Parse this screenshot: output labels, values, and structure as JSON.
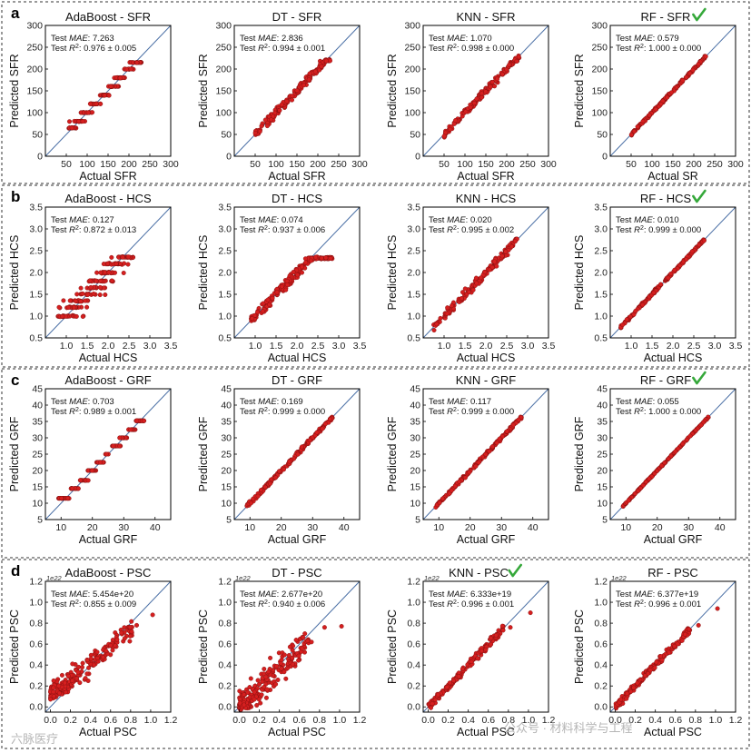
{
  "rows": [
    {
      "letter": "a",
      "ylabel": "Predicted SFR",
      "xlabel": "Actual SFR",
      "ticks": [
        0,
        50,
        100,
        150,
        200,
        250,
        300
      ],
      "xticks": [
        50,
        100,
        150,
        200,
        250,
        300
      ],
      "sci": "",
      "panels": [
        {
          "title": "AdaBoost - SFR",
          "check": false,
          "xlabel": "Actual SFR",
          "mae": "7.263",
          "r2": ": 0.976 ± 0.005",
          "chart_data": {
            "type": "scatter",
            "x_range": [
              0,
              300
            ],
            "y_range": [
              0,
              300
            ],
            "gen": {
              "kind": "step",
              "xmin": 55,
              "xmax": 230,
              "levels": [
                65,
                80,
                100,
                120,
                140,
                160,
                180,
                200,
                215
              ],
              "noise": 6,
              "n": 170
            }
          }
        },
        {
          "title": "DT - SFR",
          "check": false,
          "xlabel": "Actual SFR",
          "mae": "2.836",
          "r2": ": 0.994 ± 0.001",
          "chart_data": {
            "type": "scatter",
            "x_range": [
              0,
              300
            ],
            "y_range": [
              0,
              300
            ],
            "gen": {
              "kind": "flat",
              "xmin": 50,
              "xmax": 230,
              "noise": 5,
              "cap": 220,
              "n": 170
            }
          }
        },
        {
          "title": "KNN - SFR",
          "check": false,
          "xlabel": "Actual SFR",
          "mae": "1.070",
          "r2": ": 0.998 ± 0.000",
          "chart_data": {
            "type": "scatter",
            "x_range": [
              0,
              300
            ],
            "y_range": [
              0,
              300
            ],
            "gen": {
              "kind": "line",
              "xmin": 50,
              "xmax": 230,
              "noise": 4,
              "n": 160
            }
          }
        },
        {
          "title": "RF - SFR",
          "check": true,
          "xlabel": "Actual SR",
          "mae": "0.579",
          "r2": ": 1.000 ± 0.000",
          "chart_data": {
            "type": "scatter",
            "x_range": [
              0,
              300
            ],
            "y_range": [
              0,
              300
            ],
            "gen": {
              "kind": "line",
              "xmin": 50,
              "xmax": 230,
              "noise": 1.5,
              "n": 160
            }
          }
        }
      ]
    },
    {
      "letter": "b",
      "ylabel": "Predicted HCS",
      "xlabel": "Actual HCS",
      "ticks": [
        0.5,
        1.0,
        1.5,
        2.0,
        2.5,
        3.0,
        3.5
      ],
      "xticks": [
        1.0,
        1.5,
        2.0,
        2.5,
        3.0,
        3.5
      ],
      "sci": "",
      "panels": [
        {
          "title": "AdaBoost - HCS",
          "check": false,
          "xlabel": "Actual HCS",
          "mae": "0.127",
          "r2": ": 0.872 ± 0.013",
          "chart_data": {
            "type": "scatter",
            "x_range": [
              0.5,
              3.5
            ],
            "y_range": [
              0.5,
              3.5
            ],
            "gen": {
              "kind": "step",
              "xmin": 0.8,
              "xmax": 2.6,
              "levels": [
                1.0,
                1.2,
                1.35,
                1.5,
                1.65,
                1.8,
                2.0,
                2.2,
                2.35
              ],
              "noise": 0.15,
              "n": 200
            }
          }
        },
        {
          "title": "DT - HCS",
          "check": false,
          "xlabel": "Actual HCS",
          "mae": "0.074",
          "r2": ": 0.937 ± 0.006",
          "chart_data": {
            "type": "scatter",
            "x_range": [
              0.5,
              3.5
            ],
            "y_range": [
              0.5,
              3.5
            ],
            "gen": {
              "kind": "flat",
              "xmin": 0.9,
              "xmax": 2.85,
              "noise": 0.06,
              "cap": 2.33,
              "n": 200
            }
          }
        },
        {
          "title": "KNN - HCS",
          "check": false,
          "xlabel": "Actual HCS",
          "mae": "0.020",
          "r2": ": 0.995 ± 0.002",
          "chart_data": {
            "type": "scatter",
            "x_range": [
              0.5,
              3.5
            ],
            "y_range": [
              0.5,
              3.5
            ],
            "gen": {
              "kind": "line",
              "xmin": 0.75,
              "xmax": 2.75,
              "noise": 0.05,
              "n": 170
            }
          }
        },
        {
          "title": "RF - HCS",
          "check": true,
          "xlabel": "Actual HCS",
          "mae": "0.010",
          "r2": ": 0.999 ± 0.000",
          "chart_data": {
            "type": "scatter",
            "x_range": [
              0.5,
              3.5
            ],
            "y_range": [
              0.5,
              3.5
            ],
            "gen": {
              "kind": "line",
              "xmin": 0.75,
              "xmax": 2.8,
              "noise": 0.015,
              "n": 170
            }
          }
        }
      ]
    },
    {
      "letter": "c",
      "ylabel": "Predicted GRF",
      "xlabel": "Actual GRF",
      "ticks": [
        5,
        10,
        15,
        20,
        25,
        30,
        35,
        40,
        45
      ],
      "xticks": [
        10,
        20,
        30,
        40
      ],
      "sci": "",
      "panels": [
        {
          "title": "AdaBoost - GRF",
          "check": false,
          "xlabel": "Actual GRF",
          "mae": "0.703",
          "r2": ": 0.989 ± 0.001",
          "chart_data": {
            "type": "scatter",
            "x_range": [
              5,
              45
            ],
            "y_range": [
              5,
              45
            ],
            "gen": {
              "kind": "step",
              "xmin": 9,
              "xmax": 36.5,
              "levels": [
                11.5,
                14.5,
                17,
                20,
                22.5,
                25,
                27.5,
                30,
                32.5,
                35.2
              ],
              "noise": 0.2,
              "n": 170
            }
          }
        },
        {
          "title": "DT - GRF",
          "check": false,
          "xlabel": "Actual GRF",
          "mae": "0.169",
          "r2": ": 0.999 ± 0.000",
          "chart_data": {
            "type": "scatter",
            "x_range": [
              5,
              45
            ],
            "y_range": [
              5,
              45
            ],
            "gen": {
              "kind": "line",
              "xmin": 9,
              "xmax": 36.5,
              "noise": 0.3,
              "n": 170
            }
          }
        },
        {
          "title": "KNN - GRF",
          "check": false,
          "xlabel": "Actual GRF",
          "mae": "0.117",
          "r2": ": 0.999 ± 0.000",
          "chart_data": {
            "type": "scatter",
            "x_range": [
              5,
              45
            ],
            "y_range": [
              5,
              45
            ],
            "gen": {
              "kind": "line",
              "xmin": 9,
              "xmax": 36.5,
              "noise": 0.25,
              "n": 170
            }
          }
        },
        {
          "title": "RF - GRF",
          "check": true,
          "xlabel": "Actual GRF",
          "mae": "0.055",
          "r2": ": 1.000 ± 0.000",
          "chart_data": {
            "type": "scatter",
            "x_range": [
              5,
              45
            ],
            "y_range": [
              5,
              45
            ],
            "gen": {
              "kind": "line",
              "xmin": 9,
              "xmax": 36.5,
              "noise": 0.08,
              "n": 170
            }
          }
        }
      ]
    },
    {
      "letter": "d",
      "ylabel": "Predicted PSC",
      "xlabel": "Actual PSC",
      "ticks": [
        0.0,
        0.2,
        0.4,
        0.6,
        0.8,
        1.0,
        1.2
      ],
      "xticks": [
        0.0,
        0.2,
        0.4,
        0.6,
        0.8,
        1.0,
        1.2
      ],
      "sci": "1e22",
      "panels": [
        {
          "title": "AdaBoost - PSC",
          "check": false,
          "xlabel": "Actual PSC",
          "mae": "5.454e+20",
          "r2": ": 0.855 ± 0.009",
          "chart_data": {
            "type": "scatter",
            "x_range": [
              -0.05,
              1.2
            ],
            "y_range": [
              -0.05,
              1.2
            ],
            "gen": {
              "kind": "spread",
              "xmin": 0.0,
              "xmax": 0.82,
              "noise": 0.05,
              "floor": 0.1,
              "n": 220,
              "extra": [
                [
                  1.02,
                  0.88
                ],
                [
                  0.86,
                  0.78
                ]
              ]
            }
          }
        },
        {
          "title": "DT - PSC",
          "check": false,
          "xlabel": "Actual PSC",
          "mae": "2.677e+20",
          "r2": ": 0.940 ± 0.006",
          "chart_data": {
            "type": "scatter",
            "x_range": [
              -0.05,
              1.2
            ],
            "y_range": [
              -0.05,
              1.2
            ],
            "gen": {
              "kind": "spread",
              "xmin": 0.0,
              "xmax": 0.7,
              "noise": 0.07,
              "floor": 0.0,
              "n": 220,
              "extra": [
                [
                  1.02,
                  0.77
                ],
                [
                  0.85,
                  0.76
                ],
                [
                  0.72,
                  0.62
                ]
              ]
            }
          }
        },
        {
          "title": "KNN - PSC",
          "check": true,
          "xlabel": "Actual PSC",
          "mae": "6.333e+19",
          "r2": ": 0.996 ± 0.001",
          "chart_data": {
            "type": "scatter",
            "x_range": [
              -0.05,
              1.2
            ],
            "y_range": [
              -0.05,
              1.2
            ],
            "gen": {
              "kind": "line",
              "xmin": 0.0,
              "xmax": 0.75,
              "noise": 0.018,
              "n": 180,
              "extra": [
                [
                  1.02,
                  0.9
                ],
                [
                  0.82,
                  0.76
                ]
              ]
            }
          }
        },
        {
          "title": "RF - PSC",
          "check": false,
          "xlabel": "Actual PSC",
          "mae": "6.377e+19",
          "r2": ": 0.996 ± 0.001",
          "chart_data": {
            "type": "scatter",
            "x_range": [
              -0.05,
              1.2
            ],
            "y_range": [
              -0.05,
              1.2
            ],
            "gen": {
              "kind": "line",
              "xmin": 0.0,
              "xmax": 0.75,
              "noise": 0.018,
              "n": 180,
              "extra": [
                [
                  1.02,
                  0.94
                ],
                [
                  0.83,
                  0.78
                ]
              ]
            }
          }
        }
      ]
    }
  ],
  "anno": {
    "prefix": "Test ",
    "mae_label": "MAE",
    "r2_prefix": "Test ",
    "r2_label": "R",
    "r2_sup": "2",
    "sep": ": "
  },
  "watermark": {
    "left": "六脉医疗",
    "right": "公众号 · 材料科学与工程"
  },
  "colors": {
    "points": "#d51f1f",
    "diagonal": "#4a6fa5",
    "check": "#35a83a"
  }
}
